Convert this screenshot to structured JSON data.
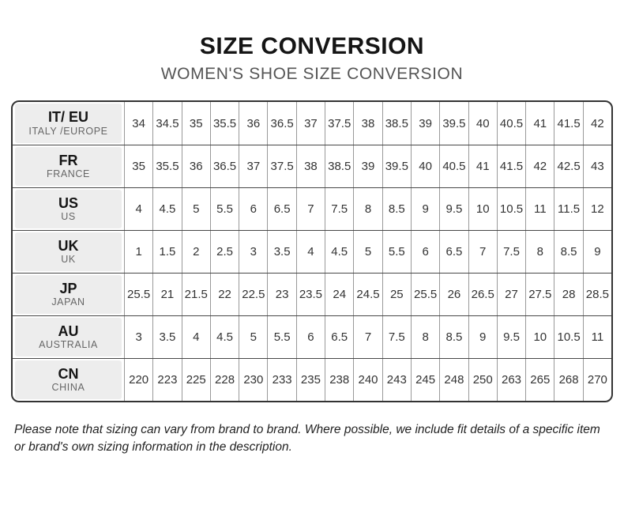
{
  "chart_data": {
    "type": "table",
    "title": "SIZE CONVERSION",
    "subtitle": "WOMEN'S SHOE SIZE CONVERSION",
    "rows": [
      {
        "code": "IT/ EU",
        "region": "ITALY /EUROPE",
        "values": [
          "34",
          "34.5",
          "35",
          "35.5",
          "36",
          "36.5",
          "37",
          "37.5",
          "38",
          "38.5",
          "39",
          "39.5",
          "40",
          "40.5",
          "41",
          "41.5",
          "42"
        ]
      },
      {
        "code": "FR",
        "region": "FRANCE",
        "values": [
          "35",
          "35.5",
          "36",
          "36.5",
          "37",
          "37.5",
          "38",
          "38.5",
          "39",
          "39.5",
          "40",
          "40.5",
          "41",
          "41.5",
          "42",
          "42.5",
          "43"
        ]
      },
      {
        "code": "US",
        "region": "US",
        "values": [
          "4",
          "4.5",
          "5",
          "5.5",
          "6",
          "6.5",
          "7",
          "7.5",
          "8",
          "8.5",
          "9",
          "9.5",
          "10",
          "10.5",
          "11",
          "11.5",
          "12"
        ]
      },
      {
        "code": "UK",
        "region": "UK",
        "values": [
          "1",
          "1.5",
          "2",
          "2.5",
          "3",
          "3.5",
          "4",
          "4.5",
          "5",
          "5.5",
          "6",
          "6.5",
          "7",
          "7.5",
          "8",
          "8.5",
          "9"
        ]
      },
      {
        "code": "JP",
        "region": "JAPAN",
        "values": [
          "25.5",
          "21",
          "21.5",
          "22",
          "22.5",
          "23",
          "23.5",
          "24",
          "24.5",
          "25",
          "25.5",
          "26",
          "26.5",
          "27",
          "27.5",
          "28",
          "28.5"
        ]
      },
      {
        "code": "AU",
        "region": "AUSTRALIA",
        "values": [
          "3",
          "3.5",
          "4",
          "4.5",
          "5",
          "5.5",
          "6",
          "6.5",
          "7",
          "7.5",
          "8",
          "8.5",
          "9",
          "9.5",
          "10",
          "10.5",
          "11"
        ]
      },
      {
        "code": "CN",
        "region": "CHINA",
        "values": [
          "220",
          "223",
          "225",
          "228",
          "230",
          "233",
          "235",
          "238",
          "240",
          "243",
          "245",
          "248",
          "250",
          "263",
          "265",
          "268",
          "270"
        ]
      }
    ],
    "note": "Please note that sizing can vary from brand to brand. Where possible, we include fit details of a specific item or brand's own sizing information in the description.",
    "layout": {
      "columns_per_row": 17,
      "legend_position": "none",
      "grid": "on"
    },
    "colors": {
      "title_text": "#151515",
      "subtitle_text": "#555555",
      "label_cell_bg": "#ededed",
      "outer_border": "#333333",
      "row_line": "#474747",
      "column_line": "#999999",
      "value_text": "#333333",
      "region_text": "#666666"
    }
  }
}
